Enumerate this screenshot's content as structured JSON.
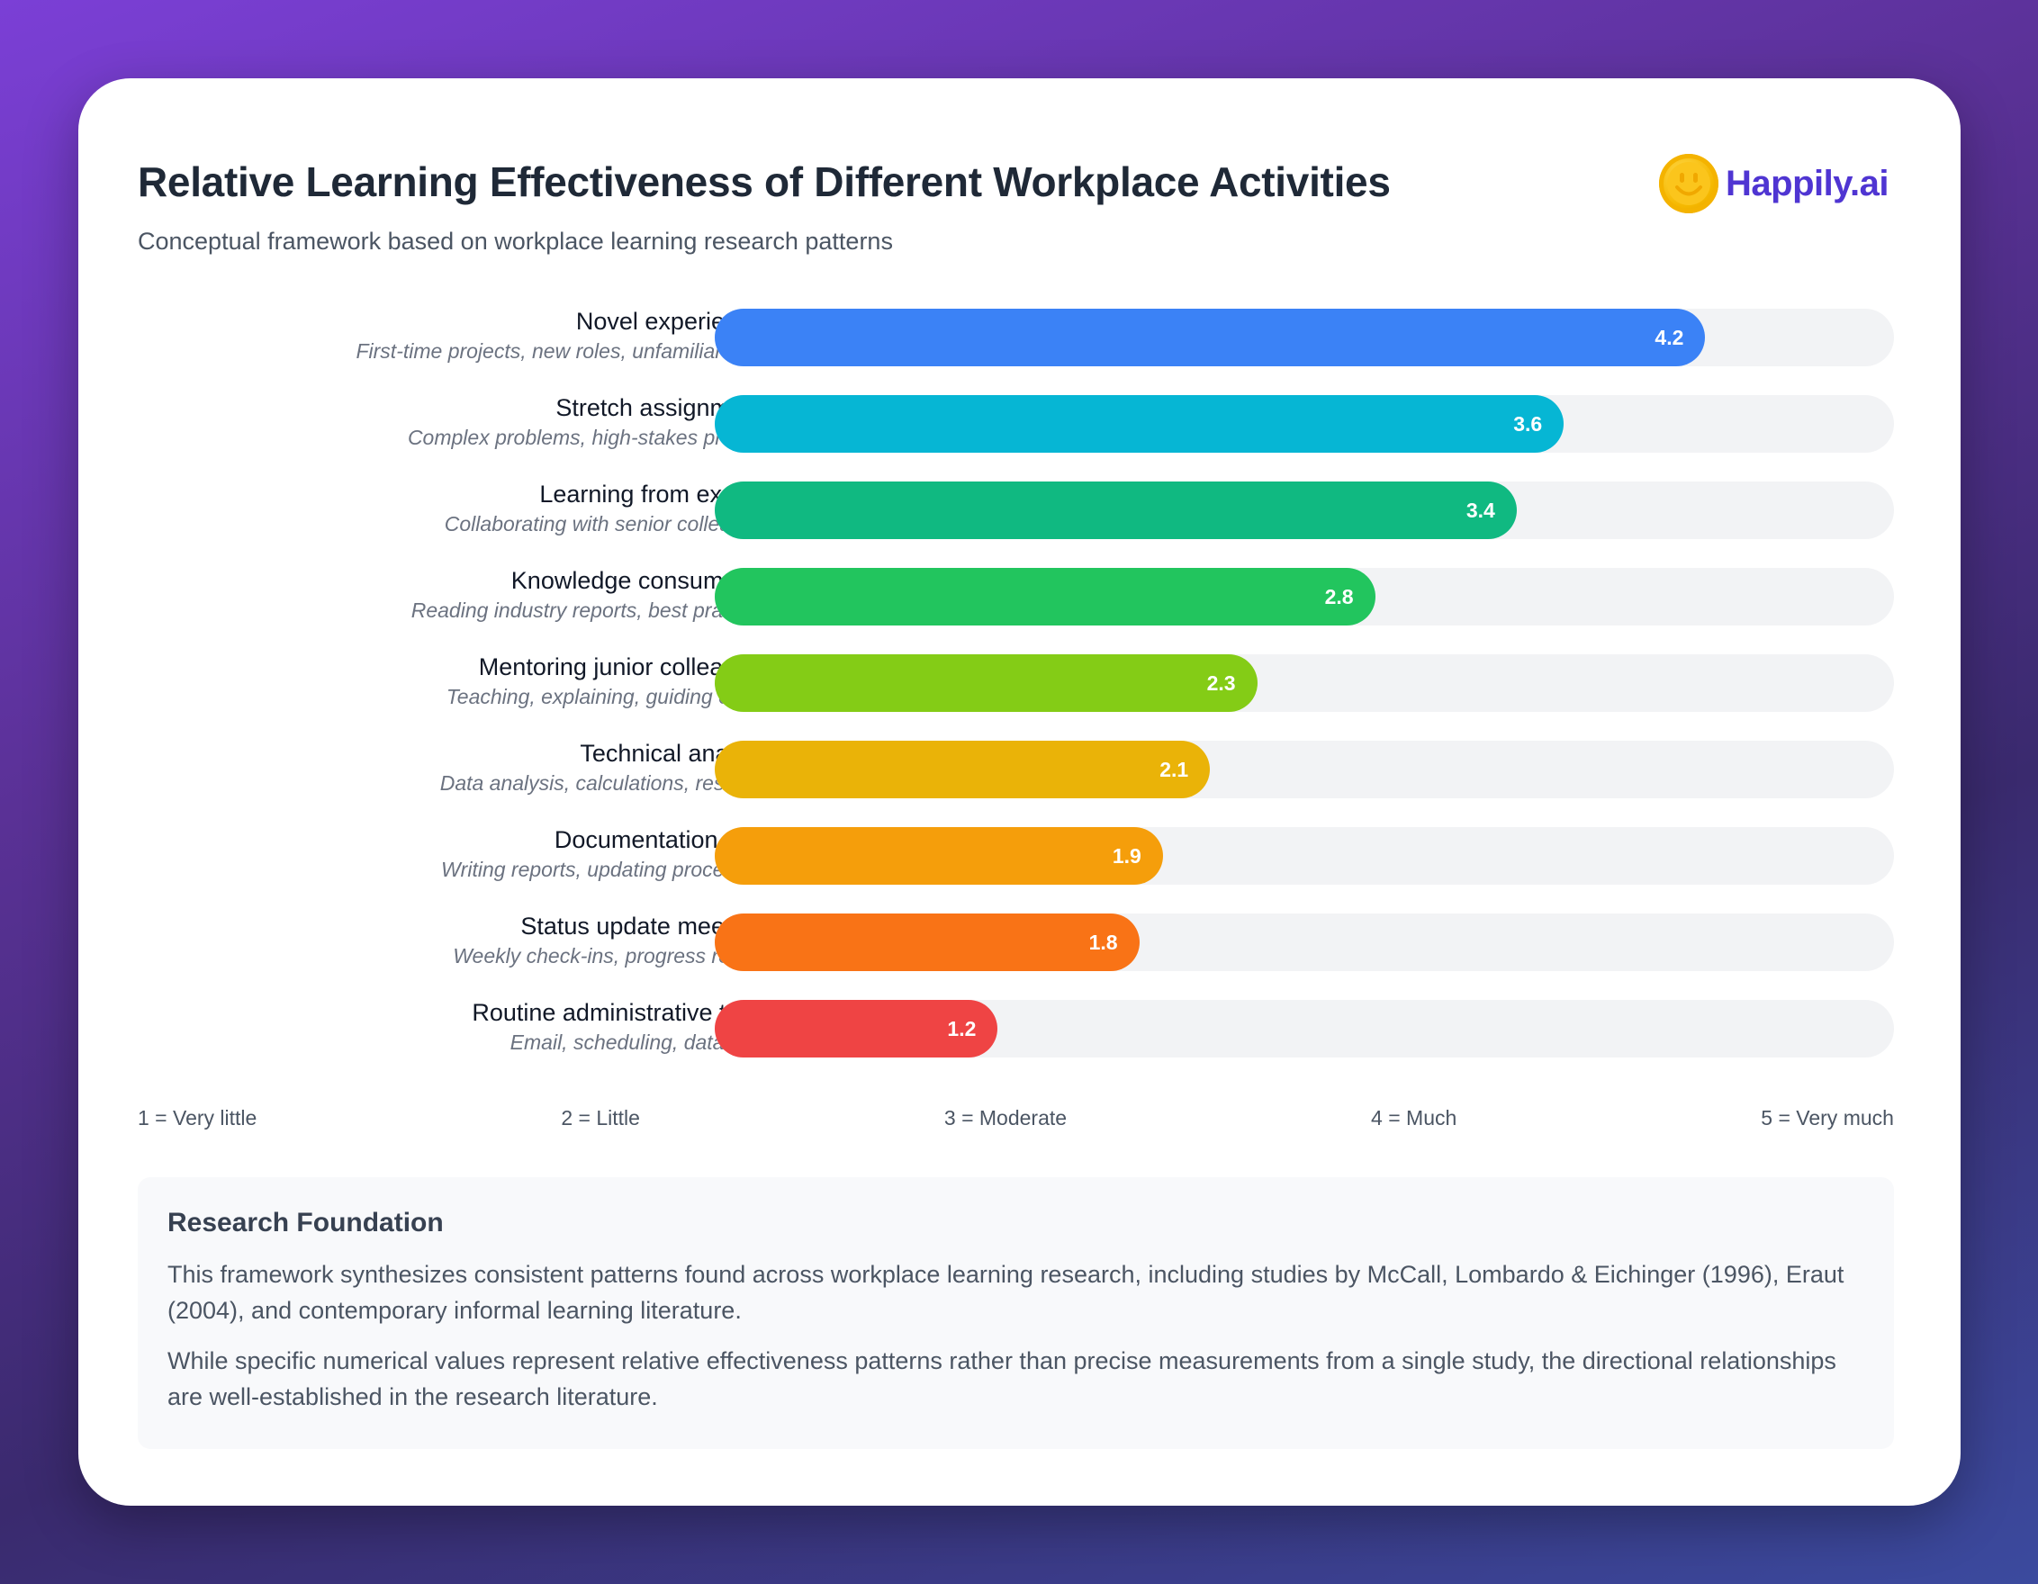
{
  "header": {
    "title": "Relative Learning Effectiveness of Different Workplace Activities",
    "subtitle": "Conceptual framework based on workplace learning research patterns",
    "logo_text": "Happily.ai"
  },
  "chart_data": {
    "type": "bar",
    "orientation": "horizontal",
    "title": "Relative Learning Effectiveness of Different Workplace Activities",
    "subtitle": "Conceptual framework based on workplace learning research patterns",
    "xlim": [
      0,
      5
    ],
    "categories": [
      "Novel experiences",
      "Stretch assignments",
      "Learning from experts",
      "Knowledge consumption",
      "Mentoring junior colleagues",
      "Technical analysis",
      "Documentation work",
      "Status update meetings",
      "Routine administrative tasks"
    ],
    "descriptions": [
      "First-time projects, new roles, unfamiliar tasks",
      "Complex problems, high-stakes projects",
      "Collaborating with senior colleagues",
      "Reading industry reports, best practices",
      "Teaching, explaining, guiding others",
      "Data analysis, calculations, research",
      "Writing reports, updating procedures",
      "Weekly check-ins, progress reports",
      "Email, scheduling, data entry"
    ],
    "values": [
      4.2,
      3.6,
      3.4,
      2.8,
      2.3,
      2.1,
      1.9,
      1.8,
      1.2
    ],
    "colors": [
      "#3b82f6",
      "#06b6d4",
      "#10b981",
      "#22c55e",
      "#84cc16",
      "#eab308",
      "#f59e0b",
      "#f97316",
      "#ef4444"
    ],
    "scale_labels": [
      "1 = Very little",
      "2 = Little",
      "3 = Moderate",
      "4 = Much",
      "5 = Very much"
    ]
  },
  "research": {
    "heading": "Research Foundation",
    "paragraphs": [
      "This framework synthesizes consistent patterns found across workplace learning research, including studies by McCall, Lombardo & Eichinger (1996), Eraut (2004), and contemporary informal learning literature.",
      "While specific numerical values represent relative effectiveness patterns rather than precise measurements from a single study, the directional relationships are well-established in the research literature."
    ]
  }
}
